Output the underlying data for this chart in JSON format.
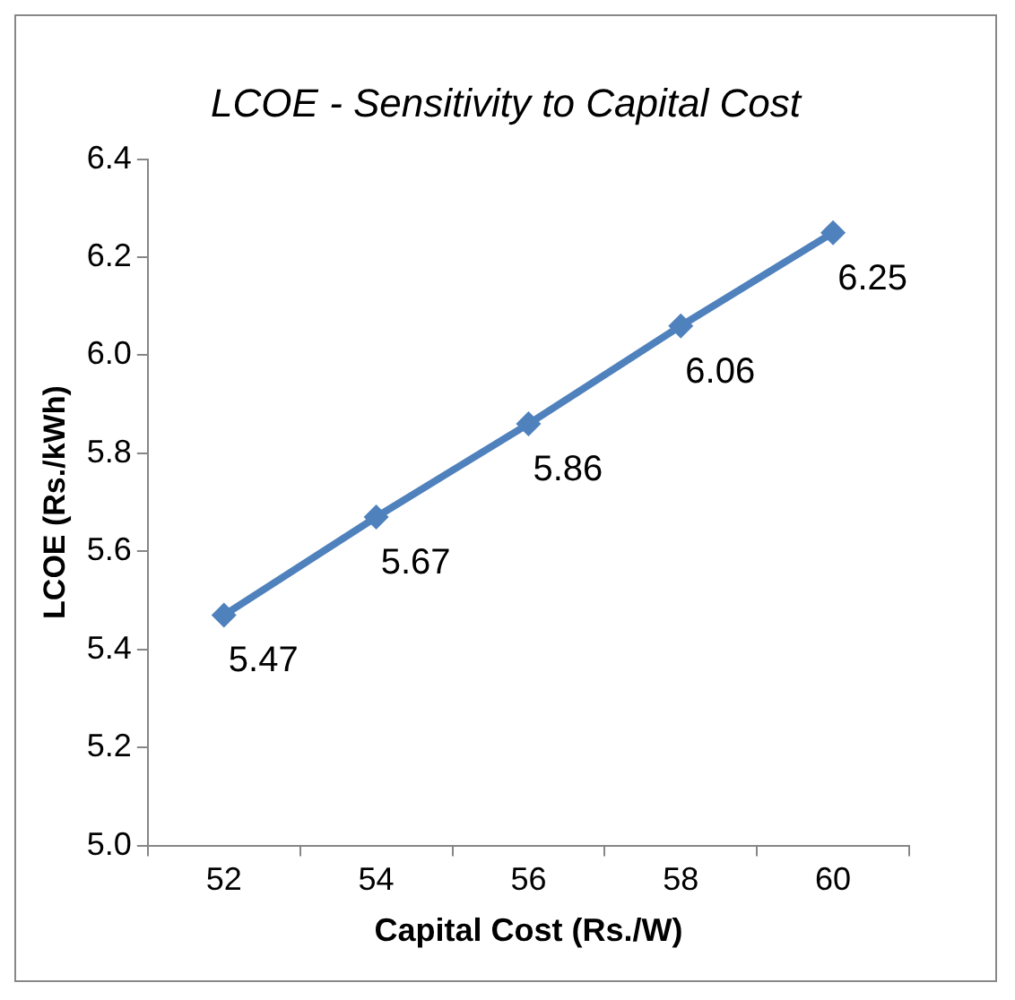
{
  "chart_data": {
    "type": "line",
    "title": "LCOE - Sensitivity to Capital Cost",
    "xlabel": "Capital Cost (Rs./W)",
    "ylabel": "LCOE (Rs./kWh)",
    "categories": [
      "52",
      "54",
      "56",
      "58",
      "60"
    ],
    "series": [
      {
        "color": "#4f81bd",
        "values": [
          5.47,
          5.67,
          5.86,
          6.06,
          6.25
        ]
      }
    ],
    "ylim": [
      5.0,
      6.4
    ],
    "yticks": [
      {
        "value": 5,
        "label": "5.0"
      },
      5.2,
      5.4,
      5.6,
      5.8,
      {
        "value": 6,
        "label": "6.0"
      },
      6.2,
      6.4
    ],
    "grid": false,
    "legend": false,
    "marker": "diamond",
    "line_style": "solid",
    "data_labels": true
  }
}
